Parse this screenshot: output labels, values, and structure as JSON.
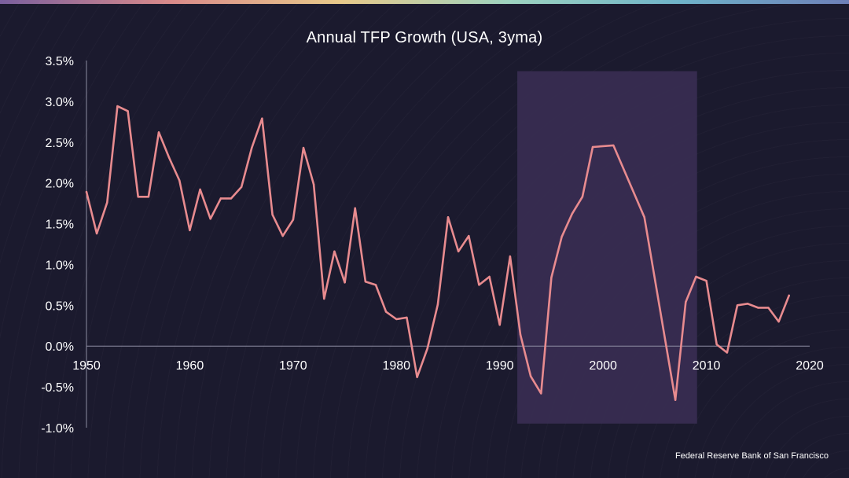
{
  "colors": {
    "background": "#1b1a2e",
    "line": "#e88b8f",
    "highlight": "#3b2f55",
    "axis": "#8e8da3",
    "text": "#ffffff"
  },
  "source": "Federal Reserve Bank of San Francisco",
  "chart_data": {
    "type": "line",
    "title": "Annual TFP Growth (USA, 3yma)",
    "xlabel": "",
    "ylabel": "",
    "xlim": [
      1950,
      2020
    ],
    "ylim": [
      -1.0,
      3.5
    ],
    "x_ticks": [
      1950,
      1960,
      1970,
      1980,
      1990,
      2000,
      2010,
      2020
    ],
    "x_tick_labels": [
      "1950",
      "1960",
      "1970",
      "1980",
      "1990",
      "2000",
      "2010",
      "2020"
    ],
    "y_ticks": [
      -1.0,
      -0.5,
      0.0,
      0.5,
      1.0,
      1.5,
      2.0,
      2.5,
      3.0,
      3.5
    ],
    "y_tick_labels": [
      "-1.0%",
      "-0.5%",
      "0.0%",
      "0.5%",
      "1.0%",
      "1.5%",
      "2.0%",
      "2.5%",
      "3.0%",
      "3.5%"
    ],
    "grid": false,
    "highlight_region": {
      "x": [
        1991.7,
        2009.1
      ],
      "y": [
        -0.95,
        3.37
      ]
    },
    "series": [
      {
        "x": [
          1950,
          1951,
          1952,
          1953,
          1954,
          1955,
          1956,
          1957,
          1958,
          1959,
          1960,
          1961,
          1962,
          1963,
          1964,
          1965,
          1966,
          1967,
          1968,
          1969,
          1970,
          1971,
          1972,
          1973,
          1974,
          1975,
          1976,
          1977,
          1978,
          1979,
          1980,
          1981,
          1982,
          1983,
          1984,
          1985,
          1986,
          1987,
          1988,
          1989,
          1990,
          1991,
          1992,
          1993,
          1994,
          1995,
          1996,
          1997,
          1998,
          1999,
          2001,
          2004,
          2007,
          2008,
          2009,
          2010,
          2011,
          2012,
          2013,
          2014,
          2015,
          2016,
          2017,
          2018
        ],
        "values": [
          1.89,
          1.38,
          1.76,
          2.94,
          2.88,
          1.83,
          1.83,
          2.62,
          2.31,
          2.03,
          1.42,
          1.92,
          1.56,
          1.81,
          1.81,
          1.95,
          2.43,
          2.79,
          1.61,
          1.35,
          1.55,
          2.43,
          1.98,
          0.58,
          1.16,
          0.78,
          1.69,
          0.79,
          0.75,
          0.42,
          0.33,
          0.35,
          -0.38,
          -0.03,
          0.51,
          1.58,
          1.16,
          1.35,
          0.75,
          0.85,
          0.26,
          1.1,
          0.14,
          -0.37,
          -0.58,
          0.84,
          1.34,
          1.62,
          1.83,
          2.44,
          2.46,
          1.58,
          -0.66,
          0.54,
          0.85,
          0.8,
          0.02,
          -0.08,
          0.5,
          0.52,
          0.47,
          0.47,
          0.3,
          0.62
        ]
      }
    ]
  }
}
